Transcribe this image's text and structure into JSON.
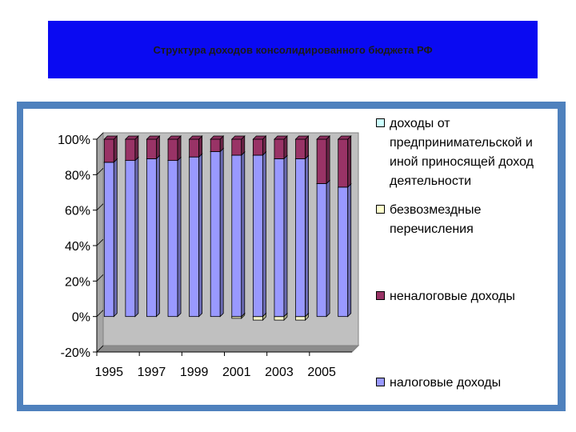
{
  "slide": {
    "title": "Структура доходов консолидированного бюджета РФ",
    "title_bg": "#0a0af2",
    "frame_color": "#4f81bd"
  },
  "chart_data": {
    "type": "bar",
    "stacked": "percent",
    "three_d": true,
    "categories": [
      "1995",
      "1996",
      "1997",
      "1998",
      "1999",
      "2000",
      "2001",
      "2002",
      "2003",
      "2004",
      "2005",
      "2006"
    ],
    "x_tick_labels": [
      "1995",
      "1997",
      "1999",
      "2001",
      "2003",
      "2005"
    ],
    "ylim": [
      -20,
      100
    ],
    "y_ticks": [
      "100%",
      "80%",
      "60%",
      "40%",
      "20%",
      "0%",
      "-20%"
    ],
    "y_tick_values": [
      100,
      80,
      60,
      40,
      20,
      0,
      -20
    ],
    "grid": false,
    "legend_position": "right",
    "series": [
      {
        "name": "налоговые доходы",
        "color": "#9999ff",
        "values": [
          87,
          88,
          89,
          88,
          90,
          93,
          91,
          91,
          89,
          89,
          75,
          73
        ]
      },
      {
        "name": "безвозмездные перечисления",
        "color": "#ffffcc",
        "values": [
          0,
          0,
          0,
          0,
          0,
          0,
          -1,
          -2,
          -2,
          -2,
          0,
          0
        ]
      },
      {
        "name": "неналоговые доходы",
        "color": "#993366",
        "values": [
          13,
          12,
          11,
          12,
          10,
          7,
          9,
          9,
          11,
          11,
          25,
          27
        ]
      },
      {
        "name": "доходы от предпринимательской и иной приносящей доход деятельности",
        "color": "#ccffff",
        "values": [
          0,
          0,
          0,
          0,
          0,
          0,
          0,
          0,
          0,
          0,
          0,
          0
        ]
      }
    ],
    "legend": [
      {
        "label": "доходы от предпринимательской и иной приносящей доход деятельности",
        "color": "#ccffff"
      },
      {
        "label": "безвозмездные перечисления",
        "color": "#ffffcc"
      },
      {
        "label": "неналоговые доходы",
        "color": "#993366"
      },
      {
        "label": "налоговые доходы",
        "color": "#9999ff"
      }
    ],
    "plot_wall_color": "#c0c0c0"
  }
}
